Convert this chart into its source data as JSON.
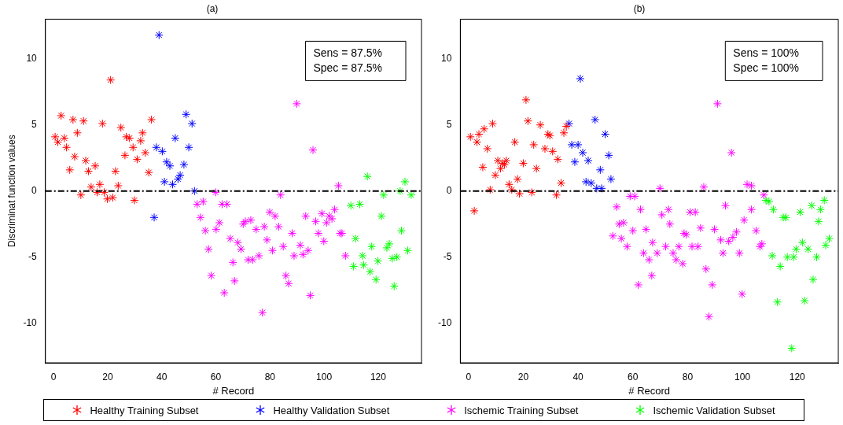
{
  "chart_data": [
    {
      "type": "scatter",
      "title": "(a)",
      "xlabel": "# Record",
      "ylabel": "Discriminat function values",
      "xlim": [
        -3,
        136
      ],
      "ylim": [
        -13,
        13
      ],
      "xticks": [
        0,
        20,
        40,
        60,
        80,
        100,
        120
      ],
      "yticks": [
        -10,
        -5,
        0,
        5,
        10
      ],
      "grid": false,
      "legend": "bottom",
      "marker": "cross",
      "annotations": [
        "Sens = 87.5%",
        "Spec = 87.5%"
      ],
      "ref_lines": [
        {
          "axis": "y",
          "value": 0,
          "color": "#000000",
          "line_style": "dashed"
        }
      ],
      "series": [
        {
          "name": "Healthy Training Subset",
          "color": "#ff0000",
          "x": [
            0.6,
            1.6,
            2.8,
            4.0,
            4.8,
            6.0,
            7.2,
            7.8,
            8.8,
            10.1,
            11.1,
            11.9,
            12.9,
            13.9,
            15.4,
            16.1,
            17.1,
            18.1,
            18.7,
            19.9,
            21.1,
            21.9,
            22.9,
            23.9,
            24.9,
            26.4,
            26.9,
            28.1,
            29.4,
            29.9,
            30.9,
            32.2,
            32.9,
            33.9,
            35.2,
            36.2
          ],
          "values": [
            4.1,
            3.7,
            5.7,
            4.0,
            3.3,
            1.6,
            5.4,
            2.6,
            4.4,
            -0.3,
            5.3,
            2.3,
            1.5,
            0.3,
            1.9,
            -0.1,
            0.5,
            5.1,
            -0.1,
            -0.6,
            8.4,
            -0.5,
            1.5,
            0.4,
            4.8,
            2.7,
            4.1,
            4.0,
            3.3,
            -0.7,
            2.4,
            3.8,
            4.4,
            2.9,
            1.4,
            5.4
          ]
        },
        {
          "name": "Healthy Validation Subset",
          "color": "#0000ff",
          "x": [
            37.2,
            38.0,
            39.0,
            40.2,
            41.0,
            41.8,
            43.0,
            44.0,
            45.0,
            46.0,
            46.8,
            48.2,
            49.0,
            50.0,
            51.2,
            52.1
          ],
          "values": [
            -2.0,
            3.3,
            11.8,
            3.0,
            0.7,
            2.2,
            1.9,
            0.5,
            4.0,
            0.9,
            1.2,
            2.0,
            5.8,
            3.3,
            5.1,
            0.0
          ]
        },
        {
          "name": "Ischemic Training Subset",
          "color": "#ff00ff",
          "x": [
            53.1,
            54.3,
            55.3,
            56.1,
            57.3,
            58.3,
            59.9,
            60.1,
            61.3,
            62.3,
            63.1,
            64.1,
            65.3,
            66.3,
            66.9,
            68.1,
            69.3,
            70.1,
            70.9,
            71.9,
            72.9,
            73.6,
            74.9,
            75.9,
            77.2,
            77.9,
            78.9,
            79.9,
            80.9,
            81.9,
            83.2,
            83.9,
            84.9,
            85.9,
            86.9,
            88.2,
            88.9,
            89.9,
            91.2,
            92.2,
            93.2,
            94.1,
            94.9,
            95.9,
            96.9,
            97.9,
            99.2,
            99.9,
            100.9,
            101.9,
            102.9,
            103.9,
            105.3,
            105.9,
            106.6,
            107.9
          ],
          "values": [
            -1.0,
            -2.0,
            -0.8,
            -3.0,
            -4.4,
            -6.4,
            -0.1,
            -2.9,
            -2.4,
            -1.0,
            -7.7,
            -1.0,
            -3.6,
            -5.4,
            -6.8,
            -3.9,
            -4.4,
            -2.5,
            -2.3,
            -5.2,
            -2.2,
            -5.2,
            -2.9,
            -4.9,
            -9.2,
            -2.7,
            -3.7,
            -1.6,
            -4.5,
            -1.9,
            -2.7,
            -0.3,
            -4.2,
            -6.4,
            -7.0,
            -3.2,
            -4.9,
            6.6,
            -4.1,
            -4.8,
            -1.9,
            -4.5,
            -7.9,
            3.1,
            -2.3,
            -3.2,
            -1.7,
            -3.8,
            -2.4,
            -1.9,
            -2.1,
            -1.4,
            0.4,
            -3.2,
            -3.2,
            -4.9
          ]
        },
        {
          "name": "Ischemic Validation Subset",
          "color": "#00ff00",
          "x": [
            109.9,
            110.9,
            111.6,
            113.2,
            114.2,
            114.6,
            116.0,
            117.0,
            117.6,
            119.2,
            119.9,
            121.2,
            122.0,
            123.2,
            124.1,
            125.2,
            125.9,
            126.9,
            128.1,
            128.6,
            129.9,
            130.9,
            132.2
          ],
          "values": [
            -1.1,
            -5.7,
            -3.6,
            -1.0,
            -4.9,
            -5.6,
            1.1,
            -6.1,
            -4.2,
            -6.7,
            -5.3,
            -1.9,
            -0.3,
            -4.3,
            -4.0,
            -5.1,
            -7.2,
            -5.0,
            0.0,
            -3.0,
            0.7,
            -4.5,
            -0.3
          ]
        }
      ]
    },
    {
      "type": "scatter",
      "title": "(b)",
      "xlabel": "# Record",
      "xlim": [
        -3,
        135
      ],
      "ylim": [
        -13,
        13
      ],
      "xticks": [
        0,
        20,
        40,
        60,
        80,
        100,
        120
      ],
      "yticks": [
        -10,
        -5,
        0,
        5,
        10
      ],
      "grid": false,
      "marker": "cross",
      "annotations": [
        "Sens = 100%",
        "Spec = 100%"
      ],
      "ref_lines": [
        {
          "axis": "y",
          "value": 0,
          "color": "#000000",
          "line_style": "dashed"
        }
      ],
      "series": [
        {
          "color": "#ff0000",
          "x": [
            0.7,
            2.1,
            3.1,
            3.8,
            5.2,
            5.7,
            6.9,
            7.9,
            8.8,
            9.8,
            10.7,
            11.7,
            12.4,
            13.1,
            13.8,
            14.8,
            15.8,
            16.9,
            17.9,
            18.6,
            20.0,
            21.0,
            21.7,
            23.1,
            23.8,
            24.8,
            26.2,
            27.9,
            29.0,
            29.7,
            30.7,
            32.1,
            32.6,
            33.8,
            34.8,
            35.7
          ],
          "values": [
            4.1,
            -1.5,
            3.7,
            4.3,
            1.8,
            4.7,
            3.2,
            0.1,
            5.1,
            1.2,
            2.3,
            1.7,
            2.1,
            2.0,
            2.3,
            0.5,
            0.1,
            3.7,
            0.9,
            -0.2,
            2.1,
            6.9,
            5.3,
            -0.1,
            3.5,
            1.7,
            5.0,
            3.2,
            4.3,
            4.2,
            3.0,
            -0.3,
            2.4,
            0.6,
            4.4,
            4.9
          ]
        },
        {
          "color": "#0000ff",
          "x": [
            36.7,
            37.7,
            38.8,
            40.0,
            40.8,
            41.7,
            42.9,
            43.7,
            44.8,
            46.2,
            46.8,
            48.1,
            48.6,
            49.9,
            51.2,
            52.0
          ],
          "values": [
            5.1,
            3.5,
            2.2,
            3.5,
            8.5,
            2.9,
            0.7,
            2.3,
            0.6,
            5.4,
            0.2,
            1.6,
            0.2,
            4.3,
            2.7,
            0.9
          ]
        },
        {
          "color": "#ff00ff",
          "x": [
            52.7,
            54.1,
            55.0,
            55.8,
            56.6,
            57.9,
            59.0,
            60.0,
            60.7,
            62.0,
            62.8,
            63.9,
            64.8,
            65.9,
            66.9,
            67.2,
            68.9,
            69.9,
            70.6,
            72.0,
            73.0,
            73.5,
            74.7,
            75.8,
            76.8,
            78.2,
            78.7,
            79.5,
            80.9,
            81.6,
            82.8,
            83.8,
            84.7,
            85.9,
            86.7,
            87.8,
            89.0,
            89.8,
            90.9,
            92.1,
            92.9,
            93.8,
            95.0,
            96.0,
            96.5,
            97.8,
            98.9,
            99.9,
            100.6,
            101.7,
            103.3,
            103.3,
            105.0,
            106.4,
            107.1,
            107.8
          ],
          "values": [
            -3.4,
            -1.2,
            -2.5,
            -3.6,
            -2.4,
            -4.2,
            -0.4,
            -3.0,
            -0.4,
            -7.1,
            -1.4,
            -4.7,
            -2.9,
            -5.2,
            -6.4,
            -3.9,
            -4.7,
            0.2,
            -1.8,
            -4.2,
            -1.4,
            -2.5,
            -4.7,
            -5.2,
            -4.2,
            -5.5,
            -3.2,
            -3.3,
            -1.6,
            -4.2,
            -1.6,
            -4.2,
            -2.8,
            0.3,
            -5.9,
            -9.5,
            -7.1,
            -2.9,
            6.6,
            -3.7,
            -4.7,
            -1.1,
            -3.8,
            2.9,
            -3.5,
            -3.1,
            -4.7,
            -7.8,
            -2.2,
            0.5,
            0.4,
            -1.4,
            -3.0,
            -4.2,
            -4.0,
            -0.3
          ]
        },
        {
          "color": "#00ff00",
          "x": [
            108.6,
            109.7,
            110.9,
            111.3,
            112.8,
            113.8,
            114.9,
            115.9,
            116.4,
            118.0,
            118.7,
            119.6,
            121.1,
            121.9,
            122.7,
            124.0,
            125.3,
            125.8,
            127.1,
            127.8,
            128.5,
            129.9,
            130.4,
            131.7
          ],
          "values": [
            -0.7,
            -0.8,
            -4.9,
            -1.4,
            -8.4,
            -5.7,
            -2.0,
            -2.0,
            -5.0,
            -11.9,
            -5.0,
            -4.4,
            -1.6,
            -3.9,
            -8.3,
            -4.4,
            -1.1,
            -6.7,
            -5.0,
            -2.3,
            -1.4,
            -0.7,
            -4.1,
            -3.6
          ]
        }
      ]
    }
  ]
}
